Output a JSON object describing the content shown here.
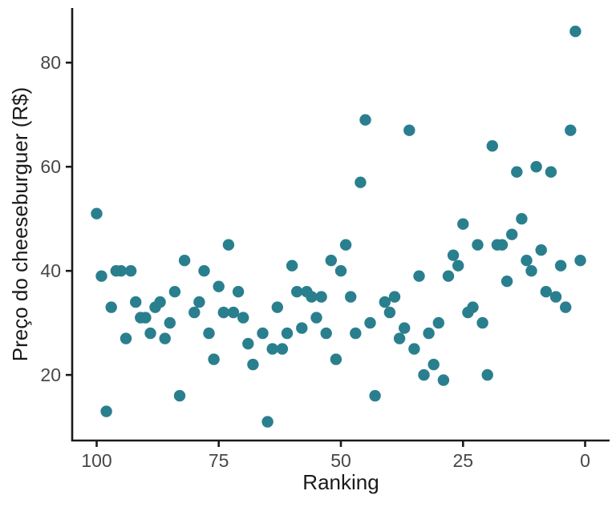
{
  "figure": {
    "background": "#ffffff"
  },
  "chart_data": {
    "type": "scatter",
    "title": "",
    "xlabel": "Ranking",
    "ylabel": "Preço do cheeseburguer (R$)",
    "x_ticks": [
      100,
      75,
      50,
      25,
      0
    ],
    "y_ticks": [
      20,
      40,
      60,
      80
    ],
    "x_axis_reversed": true,
    "xlim": [
      105,
      -5
    ],
    "ylim": [
      7.4,
      90.5
    ],
    "grid": false,
    "legend": false,
    "point_color": "#2a7f8e",
    "axis_color": "#1a1a1a",
    "tick_label_color": "#474747",
    "point_format": [
      "ranking",
      "preco_reais"
    ],
    "points": [
      [
        1,
        42
      ],
      [
        2,
        86
      ],
      [
        3,
        67
      ],
      [
        4,
        33
      ],
      [
        5,
        41
      ],
      [
        6,
        35
      ],
      [
        7,
        59
      ],
      [
        8,
        36
      ],
      [
        9,
        44
      ],
      [
        10,
        60
      ],
      [
        11,
        40
      ],
      [
        12,
        42
      ],
      [
        13,
        50
      ],
      [
        14,
        59
      ],
      [
        15,
        47
      ],
      [
        16,
        38
      ],
      [
        17,
        45
      ],
      [
        18,
        45
      ],
      [
        19,
        64
      ],
      [
        20,
        20
      ],
      [
        21,
        30
      ],
      [
        22,
        45
      ],
      [
        23,
        33
      ],
      [
        24,
        32
      ],
      [
        25,
        49
      ],
      [
        26,
        41
      ],
      [
        27,
        43
      ],
      [
        28,
        39
      ],
      [
        29,
        19
      ],
      [
        30,
        30
      ],
      [
        31,
        22
      ],
      [
        32,
        28
      ],
      [
        33,
        20
      ],
      [
        34,
        39
      ],
      [
        35,
        25
      ],
      [
        36,
        67
      ],
      [
        37,
        29
      ],
      [
        38,
        27
      ],
      [
        39,
        35
      ],
      [
        40,
        32
      ],
      [
        41,
        34
      ],
      [
        43,
        16
      ],
      [
        44,
        30
      ],
      [
        45,
        69
      ],
      [
        46,
        57
      ],
      [
        47,
        28
      ],
      [
        48,
        35
      ],
      [
        49,
        45
      ],
      [
        50,
        40
      ],
      [
        51,
        23
      ],
      [
        52,
        42
      ],
      [
        53,
        28
      ],
      [
        54,
        35
      ],
      [
        55,
        31
      ],
      [
        56,
        35
      ],
      [
        57,
        36
      ],
      [
        58,
        29
      ],
      [
        59,
        36
      ],
      [
        60,
        41
      ],
      [
        61,
        28
      ],
      [
        62,
        25
      ],
      [
        63,
        33
      ],
      [
        64,
        25
      ],
      [
        65,
        11
      ],
      [
        66,
        28
      ],
      [
        68,
        22
      ],
      [
        69,
        26
      ],
      [
        70,
        31
      ],
      [
        71,
        36
      ],
      [
        72,
        32
      ],
      [
        73,
        45
      ],
      [
        74,
        32
      ],
      [
        75,
        37
      ],
      [
        76,
        23
      ],
      [
        77,
        28
      ],
      [
        78,
        40
      ],
      [
        79,
        34
      ],
      [
        80,
        32
      ],
      [
        82,
        42
      ],
      [
        83,
        16
      ],
      [
        84,
        36
      ],
      [
        85,
        30
      ],
      [
        86,
        27
      ],
      [
        87,
        34
      ],
      [
        88,
        33
      ],
      [
        89,
        28
      ],
      [
        90,
        31
      ],
      [
        91,
        31
      ],
      [
        92,
        34
      ],
      [
        93,
        40
      ],
      [
        94,
        27
      ],
      [
        95,
        40
      ],
      [
        96,
        40
      ],
      [
        97,
        33
      ],
      [
        98,
        13
      ],
      [
        99,
        39
      ],
      [
        100,
        51
      ]
    ]
  }
}
